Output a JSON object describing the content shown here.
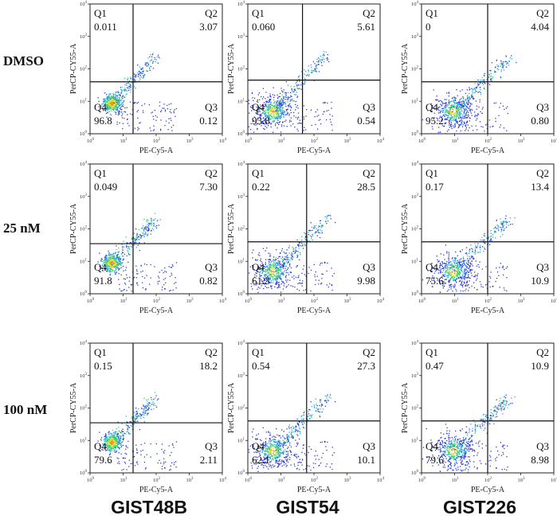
{
  "x_axis_label": "PE-Cy5-A",
  "y_axis_label": "PerCP-CY55-A",
  "rows": [
    "DMSO",
    "25 nM",
    "100 nM"
  ],
  "columns": [
    "GIST48B",
    "GIST54",
    "GIST226"
  ],
  "tick_labels": [
    "10",
    "10",
    "10",
    "10",
    "10"
  ],
  "tick_exponents": [
    "0",
    "1",
    "2",
    "3",
    "4"
  ],
  "quadrant_names": [
    "Q1",
    "Q2",
    "Q3",
    "Q4"
  ],
  "chart_data": [
    {
      "type": "scatter",
      "row": "DMSO",
      "column": "GIST48B",
      "xlim": [
        1,
        10000
      ],
      "ylim": [
        1,
        10000
      ],
      "x_scale": "log",
      "y_scale": "log",
      "quadrant_gate": [
        20,
        40
      ],
      "quadrants": {
        "Q1": "0.011",
        "Q2": "3.07",
        "Q3": "0.12",
        "Q4": "96.8"
      }
    },
    {
      "type": "scatter",
      "row": "DMSO",
      "column": "GIST54",
      "xlim": [
        1,
        10000
      ],
      "ylim": [
        1,
        10000
      ],
      "x_scale": "log",
      "y_scale": "log",
      "quadrant_gate": [
        45,
        45
      ],
      "quadrants": {
        "Q1": "0.060",
        "Q2": "5.61",
        "Q3": "0.54",
        "Q4": "93.8"
      }
    },
    {
      "type": "scatter",
      "row": "DMSO",
      "column": "GIST226",
      "xlim": [
        1,
        10000
      ],
      "ylim": [
        1,
        10000
      ],
      "x_scale": "log",
      "y_scale": "log",
      "quadrant_gate": [
        100,
        40
      ],
      "quadrants": {
        "Q1": "0",
        "Q2": "4.04",
        "Q3": "0.80",
        "Q4": "95.2"
      }
    },
    {
      "type": "scatter",
      "row": "25 nM",
      "column": "GIST48B",
      "xlim": [
        1,
        10000
      ],
      "ylim": [
        1,
        10000
      ],
      "x_scale": "log",
      "y_scale": "log",
      "quadrant_gate": [
        20,
        35
      ],
      "quadrants": {
        "Q1": "0.049",
        "Q2": "7.30",
        "Q3": "0.82",
        "Q4": "91.8"
      }
    },
    {
      "type": "scatter",
      "row": "25 nM",
      "column": "GIST54",
      "xlim": [
        1,
        10000
      ],
      "ylim": [
        1,
        10000
      ],
      "x_scale": "log",
      "y_scale": "log",
      "quadrant_gate": [
        60,
        40
      ],
      "quadrants": {
        "Q1": "0.22",
        "Q2": "28.5",
        "Q3": "9.98",
        "Q4": "61.3"
      }
    },
    {
      "type": "scatter",
      "row": "25 nM",
      "column": "GIST226",
      "xlim": [
        1,
        10000
      ],
      "ylim": [
        1,
        10000
      ],
      "x_scale": "log",
      "y_scale": "log",
      "quadrant_gate": [
        100,
        40
      ],
      "quadrants": {
        "Q1": "0.17",
        "Q2": "13.4",
        "Q3": "10.9",
        "Q4": "75.6"
      }
    },
    {
      "type": "scatter",
      "row": "100 nM",
      "column": "GIST48B",
      "xlim": [
        1,
        10000
      ],
      "ylim": [
        1,
        10000
      ],
      "x_scale": "log",
      "y_scale": "log",
      "quadrant_gate": [
        20,
        35
      ],
      "quadrants": {
        "Q1": "0.15",
        "Q2": "18.2",
        "Q3": "2.11",
        "Q4": "79.6"
      }
    },
    {
      "type": "scatter",
      "row": "100 nM",
      "column": "GIST54",
      "xlim": [
        1,
        10000
      ],
      "ylim": [
        1,
        10000
      ],
      "x_scale": "log",
      "y_scale": "log",
      "quadrant_gate": [
        60,
        40
      ],
      "quadrants": {
        "Q1": "0.54",
        "Q2": "27.3",
        "Q3": "10.1",
        "Q4": "62.1"
      }
    },
    {
      "type": "scatter",
      "row": "100 nM",
      "column": "GIST226",
      "xlim": [
        1,
        10000
      ],
      "ylim": [
        1,
        10000
      ],
      "x_scale": "log",
      "y_scale": "log",
      "quadrant_gate": [
        100,
        40
      ],
      "quadrants": {
        "Q1": "0.47",
        "Q2": "10.9",
        "Q3": "8.98",
        "Q4": "79.6"
      }
    }
  ]
}
